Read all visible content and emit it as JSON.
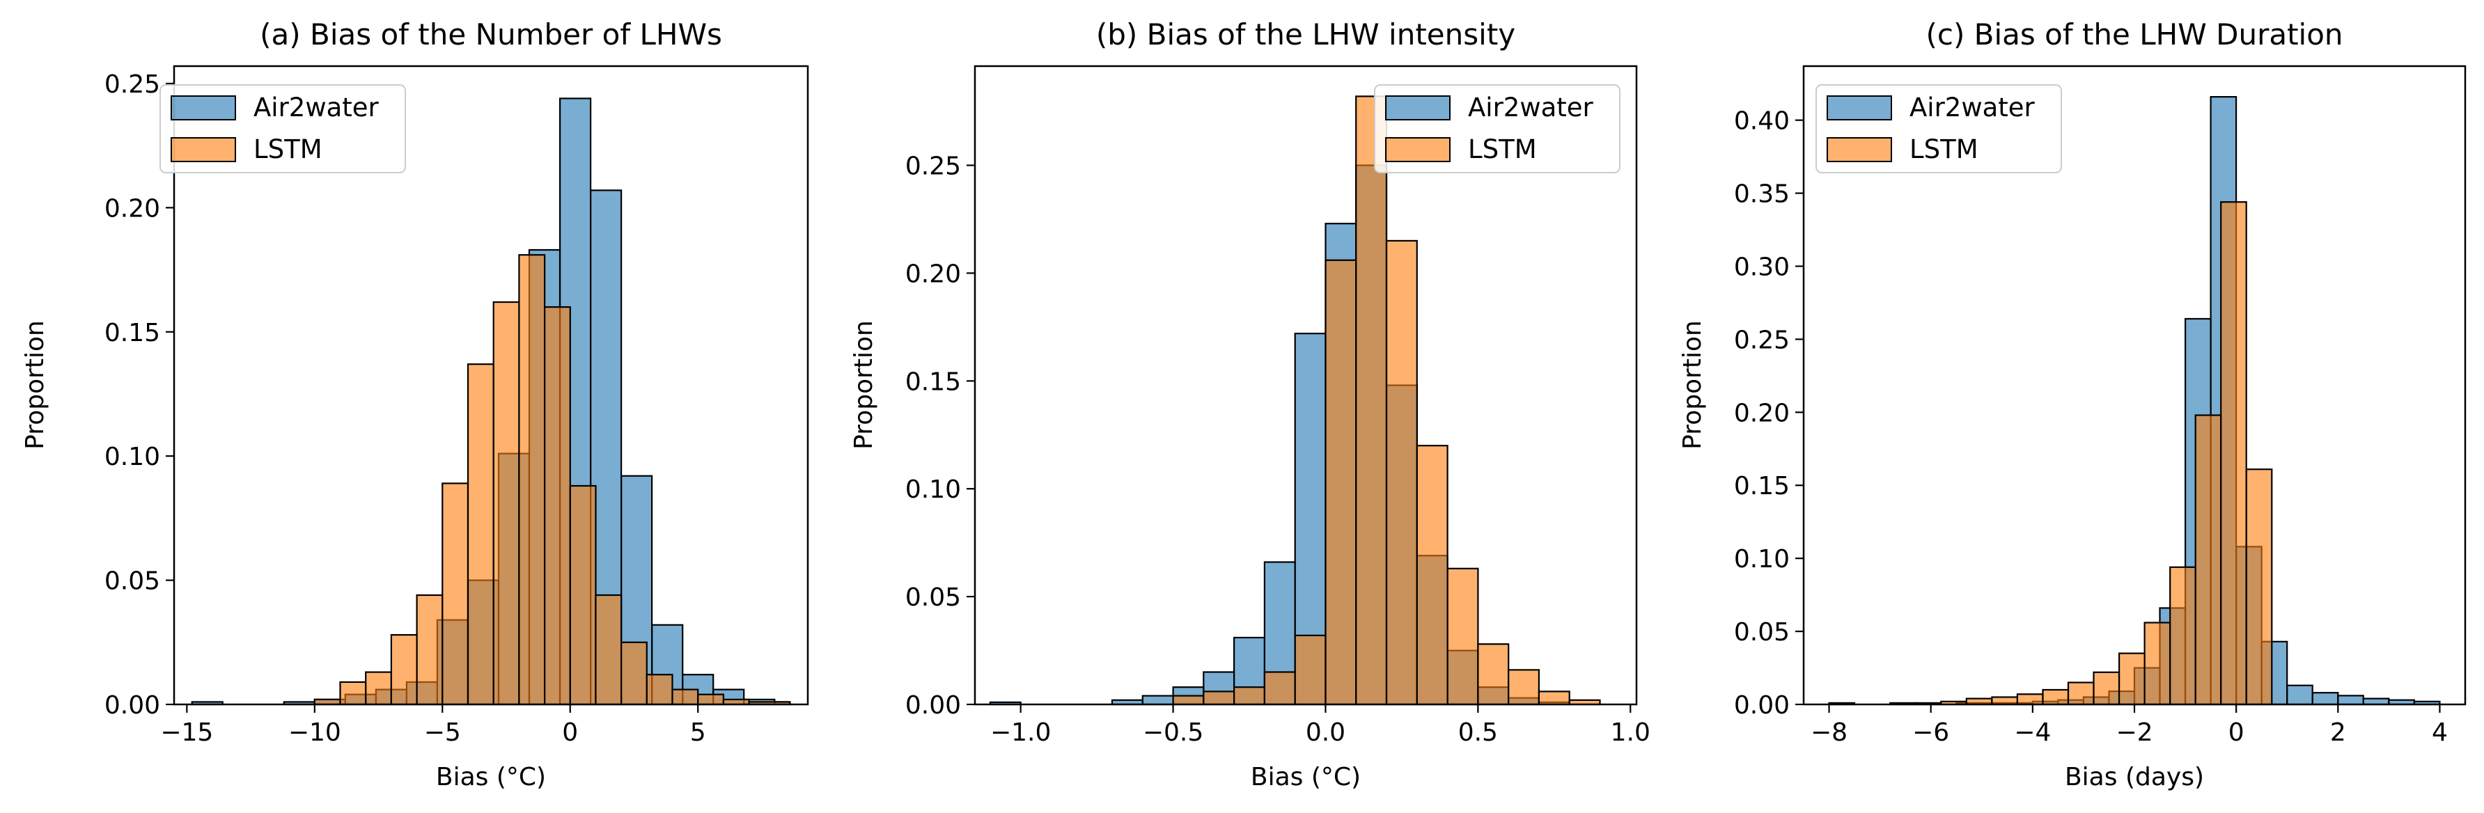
{
  "colors": {
    "air2water": "#1f77b4",
    "lstm": "#ff7f0e",
    "edge": "#000000",
    "air2water_alpha": 0.6,
    "lstm_alpha": 0.6
  },
  "chart_data": [
    {
      "type": "bar",
      "title": "(a) Bias of the Number of LHWs",
      "xlabel": "Bias (°C)",
      "ylabel": "Proportion",
      "xlim": [
        -15.5,
        9.3
      ],
      "ylim": [
        0,
        0.257
      ],
      "xticks": [
        -15,
        -10,
        -5,
        0,
        5
      ],
      "xtick_labels": [
        "−15",
        "−10",
        "−5",
        "0",
        "5"
      ],
      "yticks": [
        0.0,
        0.05,
        0.1,
        0.15,
        0.2,
        0.25
      ],
      "ytick_labels": [
        "0.00",
        "0.05",
        "0.10",
        "0.15",
        "0.20",
        "0.25"
      ],
      "legend": {
        "position": "top-left",
        "entries": [
          "Air2water",
          "LSTM"
        ]
      },
      "series": [
        {
          "name": "Air2water",
          "bin_edges": [
            -14.8,
            -13.6,
            -12.4,
            -11.2,
            -10.0,
            -8.8,
            -7.6,
            -6.4,
            -5.2,
            -4.0,
            -2.8,
            -1.6,
            -0.4,
            0.8,
            2.0,
            3.2,
            4.4,
            5.6,
            6.8,
            8.0,
            8.6
          ],
          "values": [
            0.001,
            0.0,
            0.0,
            0.001,
            0.002,
            0.004,
            0.006,
            0.009,
            0.034,
            0.05,
            0.101,
            0.183,
            0.244,
            0.207,
            0.092,
            0.032,
            0.012,
            0.006,
            0.002,
            0.001
          ]
        },
        {
          "name": "LSTM",
          "bin_edges": [
            -14.0,
            -13.0,
            -12.0,
            -11.0,
            -10.0,
            -9.0,
            -8.0,
            -7.0,
            -6.0,
            -5.0,
            -4.0,
            -3.0,
            -2.0,
            -1.0,
            0.0,
            1.0,
            2.0,
            3.0,
            4.0,
            5.0,
            6.0,
            7.0,
            8.6
          ],
          "values": [
            0.0,
            0.0,
            0.0,
            0.0,
            0.002,
            0.009,
            0.013,
            0.028,
            0.044,
            0.089,
            0.137,
            0.162,
            0.181,
            0.16,
            0.088,
            0.044,
            0.025,
            0.012,
            0.006,
            0.004,
            0.002,
            0.001
          ]
        }
      ]
    },
    {
      "type": "bar",
      "title": "(b) Bias of the LHW intensity",
      "xlabel": "Bias (°C)",
      "ylabel": "Proportion",
      "xlim": [
        -1.15,
        1.02
      ],
      "ylim": [
        0,
        0.296
      ],
      "xticks": [
        -1.0,
        -0.5,
        0.0,
        0.5,
        1.0
      ],
      "xtick_labels": [
        "−1.0",
        "−0.5",
        "0.0",
        "0.5",
        "1.0"
      ],
      "yticks": [
        0.0,
        0.05,
        0.1,
        0.15,
        0.2,
        0.25
      ],
      "ytick_labels": [
        "0.00",
        "0.05",
        "0.10",
        "0.15",
        "0.20",
        "0.25"
      ],
      "legend": {
        "position": "top-right",
        "entries": [
          "Air2water",
          "LSTM"
        ]
      },
      "series": [
        {
          "name": "Air2water",
          "bin_edges": [
            -1.1,
            -1.0,
            -0.9,
            -0.8,
            -0.7,
            -0.6,
            -0.5,
            -0.4,
            -0.3,
            -0.2,
            -0.1,
            0.0,
            0.1,
            0.2,
            0.3,
            0.4,
            0.5,
            0.6,
            0.7,
            0.8,
            0.9,
            1.0
          ],
          "values": [
            0.001,
            0.0,
            0.0,
            0.0,
            0.002,
            0.004,
            0.008,
            0.015,
            0.031,
            0.066,
            0.172,
            0.223,
            0.25,
            0.148,
            0.069,
            0.025,
            0.008,
            0.003,
            0.001,
            0.0,
            0.0
          ]
        },
        {
          "name": "LSTM",
          "bin_edges": [
            -0.5,
            -0.4,
            -0.3,
            -0.2,
            -0.1,
            0.0,
            0.1,
            0.2,
            0.3,
            0.4,
            0.5,
            0.6,
            0.7,
            0.8,
            0.9
          ],
          "values": [
            0.004,
            0.006,
            0.008,
            0.015,
            0.032,
            0.206,
            0.282,
            0.215,
            0.12,
            0.063,
            0.028,
            0.016,
            0.006,
            0.002
          ]
        }
      ]
    },
    {
      "type": "bar",
      "title": "(c) Bias of the LHW Duration",
      "xlabel": "Bias (days)",
      "ylabel": "Proportion",
      "xlim": [
        -8.5,
        4.5
      ],
      "ylim": [
        0,
        0.437
      ],
      "xticks": [
        -8,
        -6,
        -4,
        -2,
        0,
        2,
        4
      ],
      "xtick_labels": [
        "−8",
        "−6",
        "−4",
        "−2",
        "0",
        "2",
        "4"
      ],
      "yticks": [
        0.0,
        0.05,
        0.1,
        0.15,
        0.2,
        0.25,
        0.3,
        0.35,
        0.4
      ],
      "ytick_labels": [
        "0.00",
        "0.05",
        "0.10",
        "0.15",
        "0.20",
        "0.25",
        "0.30",
        "0.35",
        "0.40"
      ],
      "legend": {
        "position": "top-left",
        "entries": [
          "Air2water",
          "LSTM"
        ]
      },
      "series": [
        {
          "name": "Air2water",
          "bin_edges": [
            -8.0,
            -7.5,
            -7.0,
            -6.5,
            -6.0,
            -5.5,
            -5.0,
            -4.5,
            -4.0,
            -3.5,
            -3.0,
            -2.5,
            -2.0,
            -1.5,
            -1.0,
            -0.5,
            0.0,
            0.5,
            1.0,
            1.5,
            2.0,
            2.5,
            3.0,
            3.5,
            4.0
          ],
          "values": [
            0.001,
            0.0,
            0.0,
            0.0,
            0.0,
            0.001,
            0.001,
            0.001,
            0.002,
            0.003,
            0.005,
            0.009,
            0.025,
            0.066,
            0.264,
            0.416,
            0.108,
            0.043,
            0.013,
            0.008,
            0.006,
            0.004,
            0.003,
            0.002
          ]
        },
        {
          "name": "LSTM",
          "bin_edges": [
            -7.8,
            -7.3,
            -6.8,
            -6.3,
            -5.8,
            -5.3,
            -4.8,
            -4.3,
            -3.8,
            -3.3,
            -2.8,
            -2.3,
            -1.8,
            -1.3,
            -0.8,
            -0.3,
            0.2,
            0.7
          ],
          "values": [
            0.0,
            0.0,
            0.001,
            0.001,
            0.002,
            0.004,
            0.005,
            0.007,
            0.01,
            0.015,
            0.022,
            0.035,
            0.056,
            0.094,
            0.198,
            0.344,
            0.161
          ]
        }
      ]
    }
  ]
}
